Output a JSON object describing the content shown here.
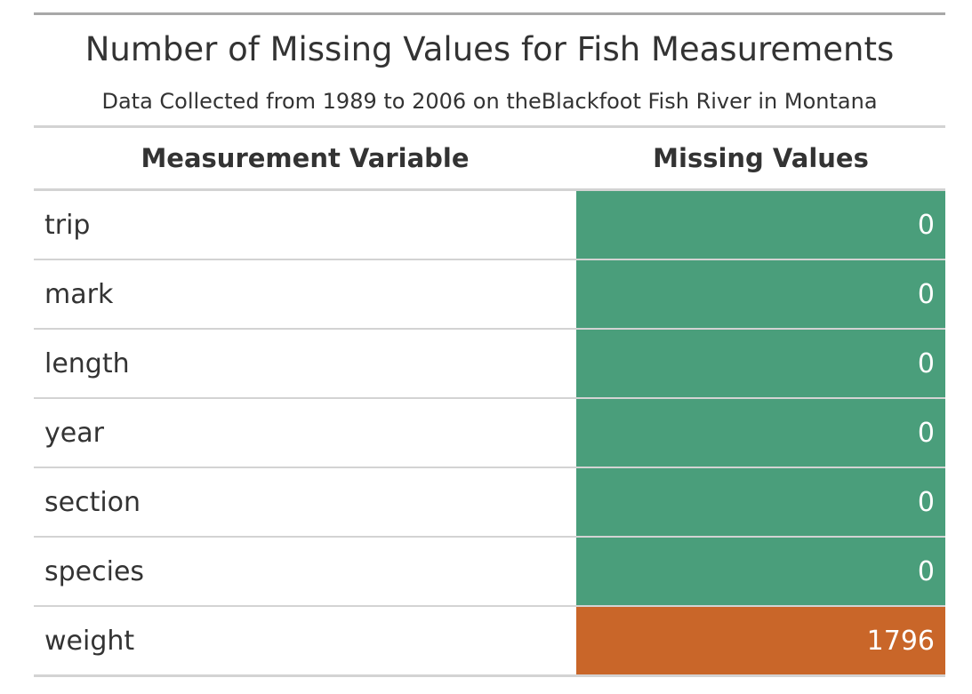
{
  "title": "Number of Missing Values for Fish Measurements",
  "subtitle": "Data Collected from 1989 to 2006 on theBlackfoot Fish River in Montana",
  "columns": [
    "Measurement Variable",
    "Missing Values"
  ],
  "colors": {
    "zero": "#4a9e7b",
    "nonzero": "#c96629"
  },
  "rows": [
    {
      "variable": "trip",
      "missing": "0"
    },
    {
      "variable": "mark",
      "missing": "0"
    },
    {
      "variable": "length",
      "missing": "0"
    },
    {
      "variable": "year",
      "missing": "0"
    },
    {
      "variable": "section",
      "missing": "0"
    },
    {
      "variable": "species",
      "missing": "0"
    },
    {
      "variable": "weight",
      "missing": "1796"
    }
  ]
}
